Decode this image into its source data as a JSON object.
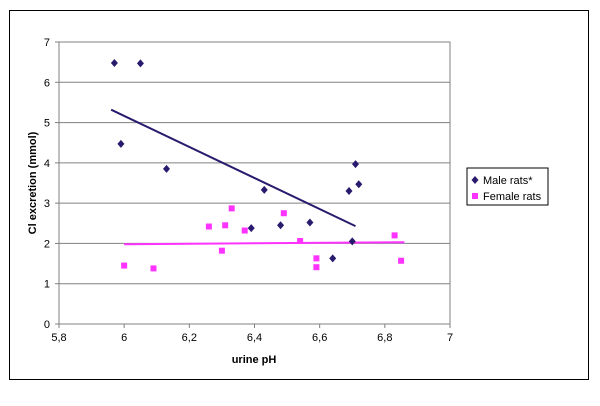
{
  "chart_data": {
    "type": "scatter",
    "title": "",
    "xlabel": "urine pH",
    "ylabel": "Cl excretion (mmol)",
    "xlim": [
      5.8,
      7
    ],
    "ylim": [
      0,
      7
    ],
    "x_ticks": [
      "5,8",
      "6",
      "6,2",
      "6,4",
      "6,6",
      "6,8",
      "7"
    ],
    "y_ticks": [
      "0",
      "1",
      "2",
      "3",
      "4",
      "5",
      "6",
      "7"
    ],
    "grid": "horizontal",
    "legend_position": "right",
    "series": [
      {
        "name": "Male rats*",
        "color": "#2a1a6e",
        "marker": "diamond",
        "points": [
          [
            5.97,
            6.48
          ],
          [
            6.05,
            6.47
          ],
          [
            5.99,
            4.47
          ],
          [
            6.13,
            3.85
          ],
          [
            6.43,
            3.33
          ],
          [
            6.39,
            2.38
          ],
          [
            6.48,
            2.45
          ],
          [
            6.57,
            2.52
          ],
          [
            6.64,
            1.63
          ],
          [
            6.69,
            3.3
          ],
          [
            6.71,
            3.97
          ],
          [
            6.72,
            3.47
          ],
          [
            6.7,
            2.05
          ]
        ],
        "trendline": [
          [
            5.96,
            5.32
          ],
          [
            6.71,
            2.43
          ]
        ],
        "trend_color": "#2a1a6e"
      },
      {
        "name": "Female rats",
        "color": "#ff33ff",
        "marker": "square",
        "points": [
          [
            6.0,
            1.45
          ],
          [
            6.09,
            1.38
          ],
          [
            6.26,
            2.42
          ],
          [
            6.3,
            1.82
          ],
          [
            6.31,
            2.45
          ],
          [
            6.33,
            2.87
          ],
          [
            6.37,
            2.32
          ],
          [
            6.49,
            2.75
          ],
          [
            6.54,
            2.06
          ],
          [
            6.59,
            1.63
          ],
          [
            6.59,
            1.41
          ],
          [
            6.83,
            2.2
          ],
          [
            6.85,
            1.57
          ]
        ],
        "trendline": [
          [
            6.0,
            1.98
          ],
          [
            6.86,
            2.03
          ]
        ],
        "trend_color": "#ff33ff"
      }
    ]
  }
}
